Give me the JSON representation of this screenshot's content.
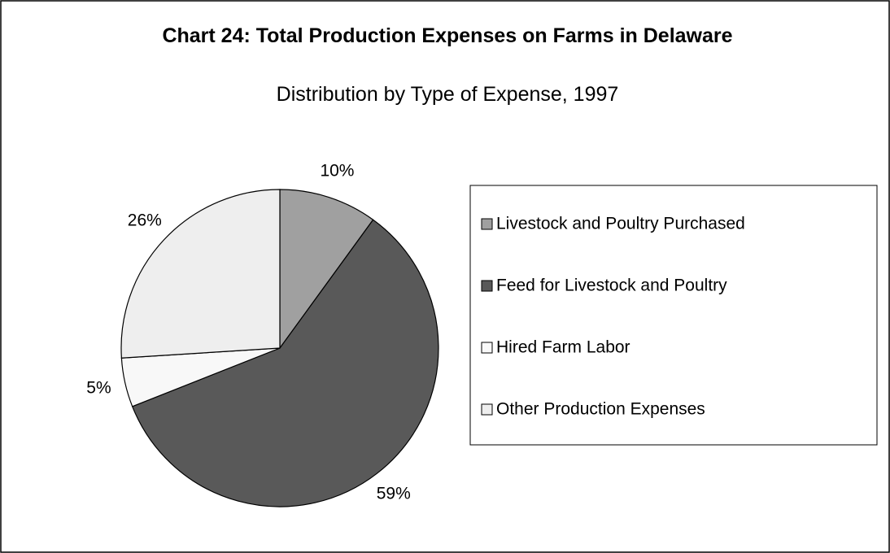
{
  "chart_data": {
    "type": "pie",
    "title": "Chart 24: Total Production Expenses on Farms in Delaware",
    "subtitle": "Distribution by Type of Expense, 1997",
    "categories": [
      "Livestock and Poultry Purchased",
      "Feed for Livestock and Poultry",
      "Hired Farm Labor",
      "Other Production Expenses"
    ],
    "values": [
      10,
      59,
      5,
      26
    ],
    "value_labels": [
      "10%",
      "59%",
      "5%",
      "26%"
    ],
    "colors": [
      "#a0a0a0",
      "#595959",
      "#f8f8f8",
      "#eeeeee"
    ],
    "legend": "right"
  }
}
